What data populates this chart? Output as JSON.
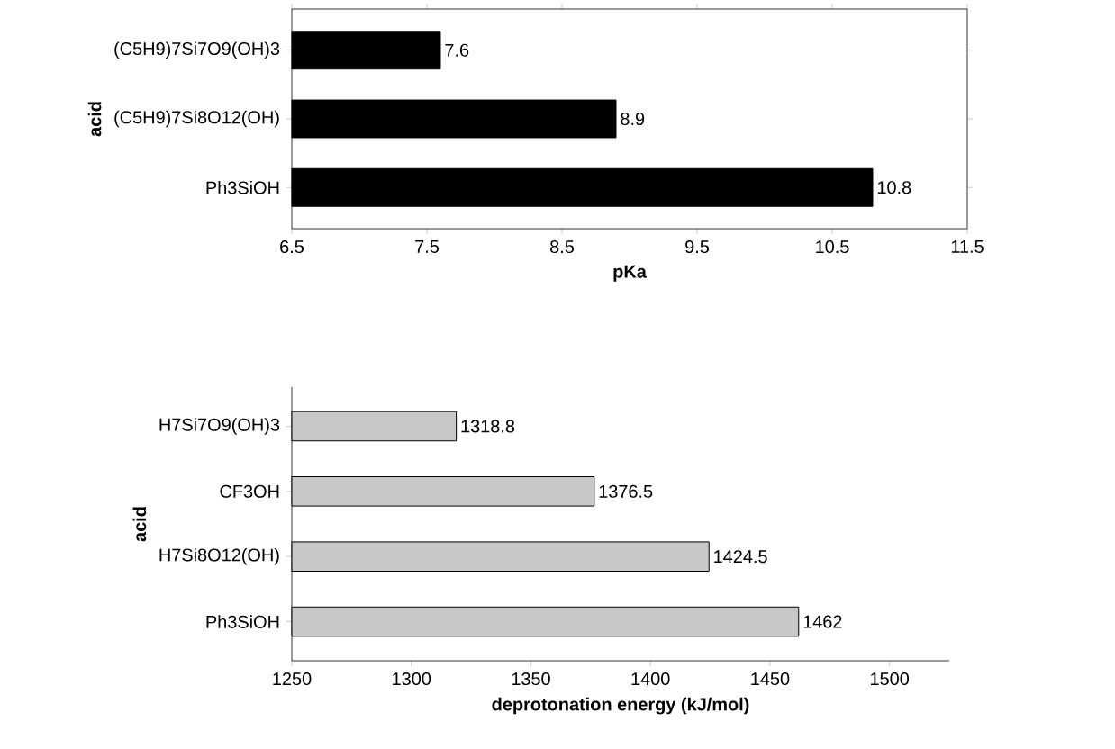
{
  "chart_data": [
    {
      "type": "bar",
      "orientation": "horizontal",
      "categories": [
        "(C5H9)7Si7O9(OH)3",
        "(C5H9)7Si8O12(OH)",
        "Ph3SiOH"
      ],
      "values": [
        7.6,
        8.9,
        10.8
      ],
      "color": "#000000",
      "xlim": [
        6.5,
        11.5
      ],
      "xticks": [
        6.5,
        7.5,
        8.5,
        9.5,
        10.5,
        11.5
      ],
      "xlabel": "pKa",
      "ylabel": "acid",
      "data_labels": true
    },
    {
      "type": "bar",
      "orientation": "horizontal",
      "categories": [
        "H7Si7O9(OH)3",
        "CF3OH",
        "H7Si8O12(OH)",
        "Ph3SiOH"
      ],
      "values": [
        1318.8,
        1376.5,
        1424.5,
        1462
      ],
      "color": "#c8c8c8",
      "xlim": [
        1250,
        1525
      ],
      "xticks": [
        1250,
        1300,
        1350,
        1400,
        1450,
        1500
      ],
      "xlabel": "deprotonation energy (kJ/mol)",
      "ylabel": "acid",
      "data_labels": true
    }
  ]
}
